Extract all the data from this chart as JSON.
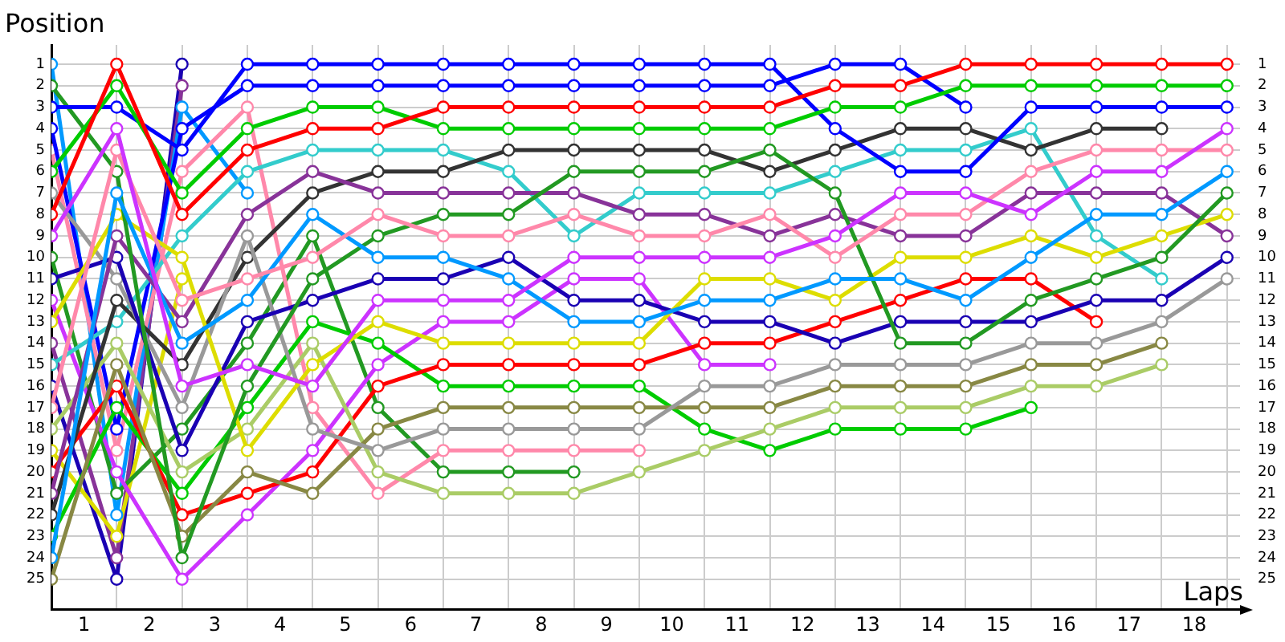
{
  "chart_data": {
    "type": "line",
    "xlabel": "Laps",
    "ylabel": "Position",
    "x": [
      0,
      1,
      2,
      3,
      4,
      5,
      6,
      7,
      8,
      9,
      10,
      11,
      12,
      13,
      14,
      15,
      16,
      17,
      18
    ],
    "xlim": [
      0,
      18.2
    ],
    "xticks": [
      {
        "value": 0,
        "label": null
      },
      {
        "value": 0.5,
        "label": "1"
      },
      {
        "value": 1,
        "label": null
      },
      {
        "value": 1.5,
        "label": "2"
      },
      {
        "value": 2,
        "label": null
      },
      {
        "value": 2.5,
        "label": "3"
      },
      {
        "value": 3,
        "label": null
      },
      {
        "value": 3.5,
        "label": "4"
      },
      {
        "value": 4,
        "label": null
      },
      {
        "value": 4.5,
        "label": "5"
      },
      {
        "value": 5,
        "label": null
      },
      {
        "value": 5.5,
        "label": "6"
      },
      {
        "value": 6,
        "label": null
      },
      {
        "value": 6.5,
        "label": "7"
      },
      {
        "value": 7,
        "label": null
      },
      {
        "value": 7.5,
        "label": "8"
      },
      {
        "value": 8,
        "label": null
      },
      {
        "value": 8.5,
        "label": "9"
      },
      {
        "value": 9,
        "label": null
      },
      {
        "value": 9.5,
        "label": "10"
      },
      {
        "value": 10,
        "label": null
      },
      {
        "value": 10.5,
        "label": "11"
      },
      {
        "value": 11,
        "label": null
      },
      {
        "value": 11.5,
        "label": "12"
      },
      {
        "value": 12,
        "label": null
      },
      {
        "value": 12.5,
        "label": "13"
      },
      {
        "value": 13,
        "label": null
      },
      {
        "value": 13.5,
        "label": "14"
      },
      {
        "value": 14,
        "label": null
      },
      {
        "value": 14.5,
        "label": "15"
      },
      {
        "value": 15,
        "label": null
      },
      {
        "value": 15.5,
        "label": "16"
      },
      {
        "value": 16,
        "label": null
      },
      {
        "value": 16.5,
        "label": "17"
      },
      {
        "value": 17,
        "label": null
      },
      {
        "value": 17.5,
        "label": "18"
      },
      {
        "value": 18,
        "label": null
      }
    ],
    "ylim": [
      26.4,
      0.1
    ],
    "yticks": [
      1,
      2,
      3,
      4,
      5,
      6,
      7,
      8,
      9,
      10,
      11,
      12,
      13,
      14,
      15,
      16,
      17,
      18,
      19,
      20,
      21,
      22,
      23,
      24,
      25
    ],
    "y2lim": [
      26.4,
      0.1
    ],
    "y2ticks": [
      1,
      2,
      3,
      4,
      5,
      6,
      7,
      8,
      9,
      10,
      11,
      12,
      13,
      14,
      15,
      16,
      17,
      18,
      19,
      20,
      21,
      22,
      23,
      24,
      25
    ],
    "grid": true,
    "legend": false,
    "marker": "circle",
    "line_style": "solid",
    "series": [
      {
        "color": "#ff0000",
        "values": [
          8,
          1,
          8,
          5,
          4,
          4,
          3,
          3,
          3,
          3,
          3,
          3,
          2,
          2,
          1,
          1,
          1,
          1,
          1
        ]
      },
      {
        "color": "#00cc00",
        "values": [
          6,
          2,
          7,
          4,
          3,
          3,
          4,
          4,
          4,
          4,
          4,
          4,
          3,
          3,
          2,
          2,
          2,
          2,
          2
        ]
      },
      {
        "color": "#0000ff",
        "values": [
          3,
          3,
          5,
          1,
          1,
          1,
          1,
          1,
          1,
          1,
          1,
          1,
          4,
          6,
          6,
          3,
          3,
          3,
          3
        ]
      },
      {
        "color": "#cc33ff",
        "values": [
          9,
          4,
          16,
          15,
          16,
          12,
          12,
          12,
          10,
          10,
          10,
          10,
          9,
          7,
          7,
          8,
          6,
          6,
          4
        ]
      },
      {
        "color": "#ff88aa",
        "values": [
          17,
          5,
          12,
          11,
          10,
          8,
          9,
          9,
          8,
          9,
          9,
          8,
          10,
          8,
          8,
          6,
          5,
          5,
          5
        ]
      },
      {
        "color": "#0099ff",
        "values": [
          24,
          7,
          14,
          12,
          8,
          10,
          10,
          11,
          13,
          13,
          12,
          12,
          11,
          11,
          12,
          10,
          8,
          8,
          6
        ]
      },
      {
        "color": "#229922",
        "values": [
          2,
          6,
          24,
          16,
          11,
          9,
          8,
          8,
          6,
          6,
          6,
          5,
          7,
          14,
          14,
          12,
          11,
          10,
          7
        ]
      },
      {
        "color": "#dddd00",
        "values": [
          13,
          8,
          10,
          19,
          15,
          13,
          14,
          14,
          14,
          14,
          11,
          11,
          12,
          10,
          10,
          9,
          10,
          9,
          8
        ]
      },
      {
        "color": "#883399",
        "values": [
          21,
          9,
          13,
          8,
          6,
          7,
          7,
          7,
          7,
          8,
          8,
          9,
          8,
          9,
          9,
          7,
          7,
          7,
          9
        ]
      },
      {
        "color": "#1a00b3",
        "values": [
          11,
          10,
          19,
          13,
          12,
          11,
          11,
          10,
          12,
          12,
          13,
          13,
          14,
          13,
          13,
          13,
          12,
          12,
          10
        ]
      },
      {
        "color": "#999999",
        "values": [
          7,
          11,
          17,
          9,
          18,
          19,
          18,
          18,
          18,
          18,
          16,
          16,
          15,
          15,
          15,
          14,
          14,
          13,
          11
        ]
      },
      {
        "color": "#333333",
        "values": [
          22,
          12,
          15,
          10,
          7,
          6,
          6,
          5,
          5,
          5,
          5,
          6,
          5,
          4,
          4,
          5,
          4,
          4,
          null
        ]
      },
      {
        "color": "#33cccc",
        "values": [
          15,
          13,
          9,
          6,
          5,
          5,
          5,
          6,
          9,
          7,
          7,
          7,
          6,
          5,
          5,
          4,
          9,
          11,
          null
        ]
      },
      {
        "color": "#888844",
        "values": [
          25,
          15,
          23,
          20,
          21,
          18,
          17,
          17,
          17,
          17,
          17,
          17,
          16,
          16,
          16,
          15,
          15,
          14,
          null
        ]
      },
      {
        "color": "#aacc66",
        "values": [
          18,
          14,
          20,
          18,
          14,
          20,
          21,
          21,
          21,
          20,
          19,
          18,
          17,
          17,
          17,
          16,
          16,
          15,
          null
        ]
      },
      {
        "color": "#ff0000",
        "values": [
          20,
          16,
          22,
          21,
          20,
          16,
          15,
          15,
          15,
          15,
          14,
          14,
          13,
          12,
          11,
          11,
          13,
          null,
          null
        ]
      },
      {
        "color": "#00cc00",
        "values": [
          23,
          17,
          21,
          17,
          13,
          14,
          16,
          16,
          16,
          16,
          18,
          19,
          18,
          18,
          18,
          17,
          null,
          null,
          null
        ]
      },
      {
        "color": "#0000ff",
        "values": [
          4,
          18,
          4,
          2,
          2,
          2,
          2,
          2,
          2,
          2,
          2,
          2,
          1,
          1,
          3,
          null,
          null,
          null,
          null
        ]
      },
      {
        "color": "#cc33ff",
        "values": [
          12,
          20,
          25,
          22,
          19,
          15,
          13,
          13,
          11,
          11,
          15,
          15,
          null,
          null,
          null,
          null,
          null,
          null,
          null
        ]
      },
      {
        "color": "#ff88aa",
        "values": [
          5,
          19,
          6,
          3,
          17,
          21,
          19,
          19,
          19,
          19,
          null,
          null,
          null,
          null,
          null,
          null,
          null,
          null,
          null
        ]
      },
      {
        "color": "#229922",
        "values": [
          10,
          21,
          18,
          14,
          9,
          17,
          20,
          20,
          20,
          null,
          null,
          null,
          null,
          null,
          null,
          null,
          null,
          null,
          null
        ]
      },
      {
        "color": "#0099ff",
        "values": [
          1,
          22,
          3,
          7,
          null,
          null,
          null,
          null,
          null,
          null,
          null,
          null,
          null,
          null,
          null,
          null,
          null,
          null,
          null
        ]
      },
      {
        "color": "#dddd00",
        "values": [
          19,
          23,
          11,
          null,
          null,
          null,
          null,
          null,
          null,
          null,
          null,
          null,
          null,
          null,
          null,
          null,
          null,
          null,
          null
        ]
      },
      {
        "color": "#883399",
        "values": [
          14,
          24,
          2,
          null,
          null,
          null,
          null,
          null,
          null,
          null,
          null,
          null,
          null,
          null,
          null,
          null,
          null,
          null,
          null
        ]
      },
      {
        "color": "#1a00b3",
        "values": [
          16,
          25,
          1,
          null,
          null,
          null,
          null,
          null,
          null,
          null,
          null,
          null,
          null,
          null,
          null,
          null,
          null,
          null,
          null
        ]
      }
    ]
  }
}
